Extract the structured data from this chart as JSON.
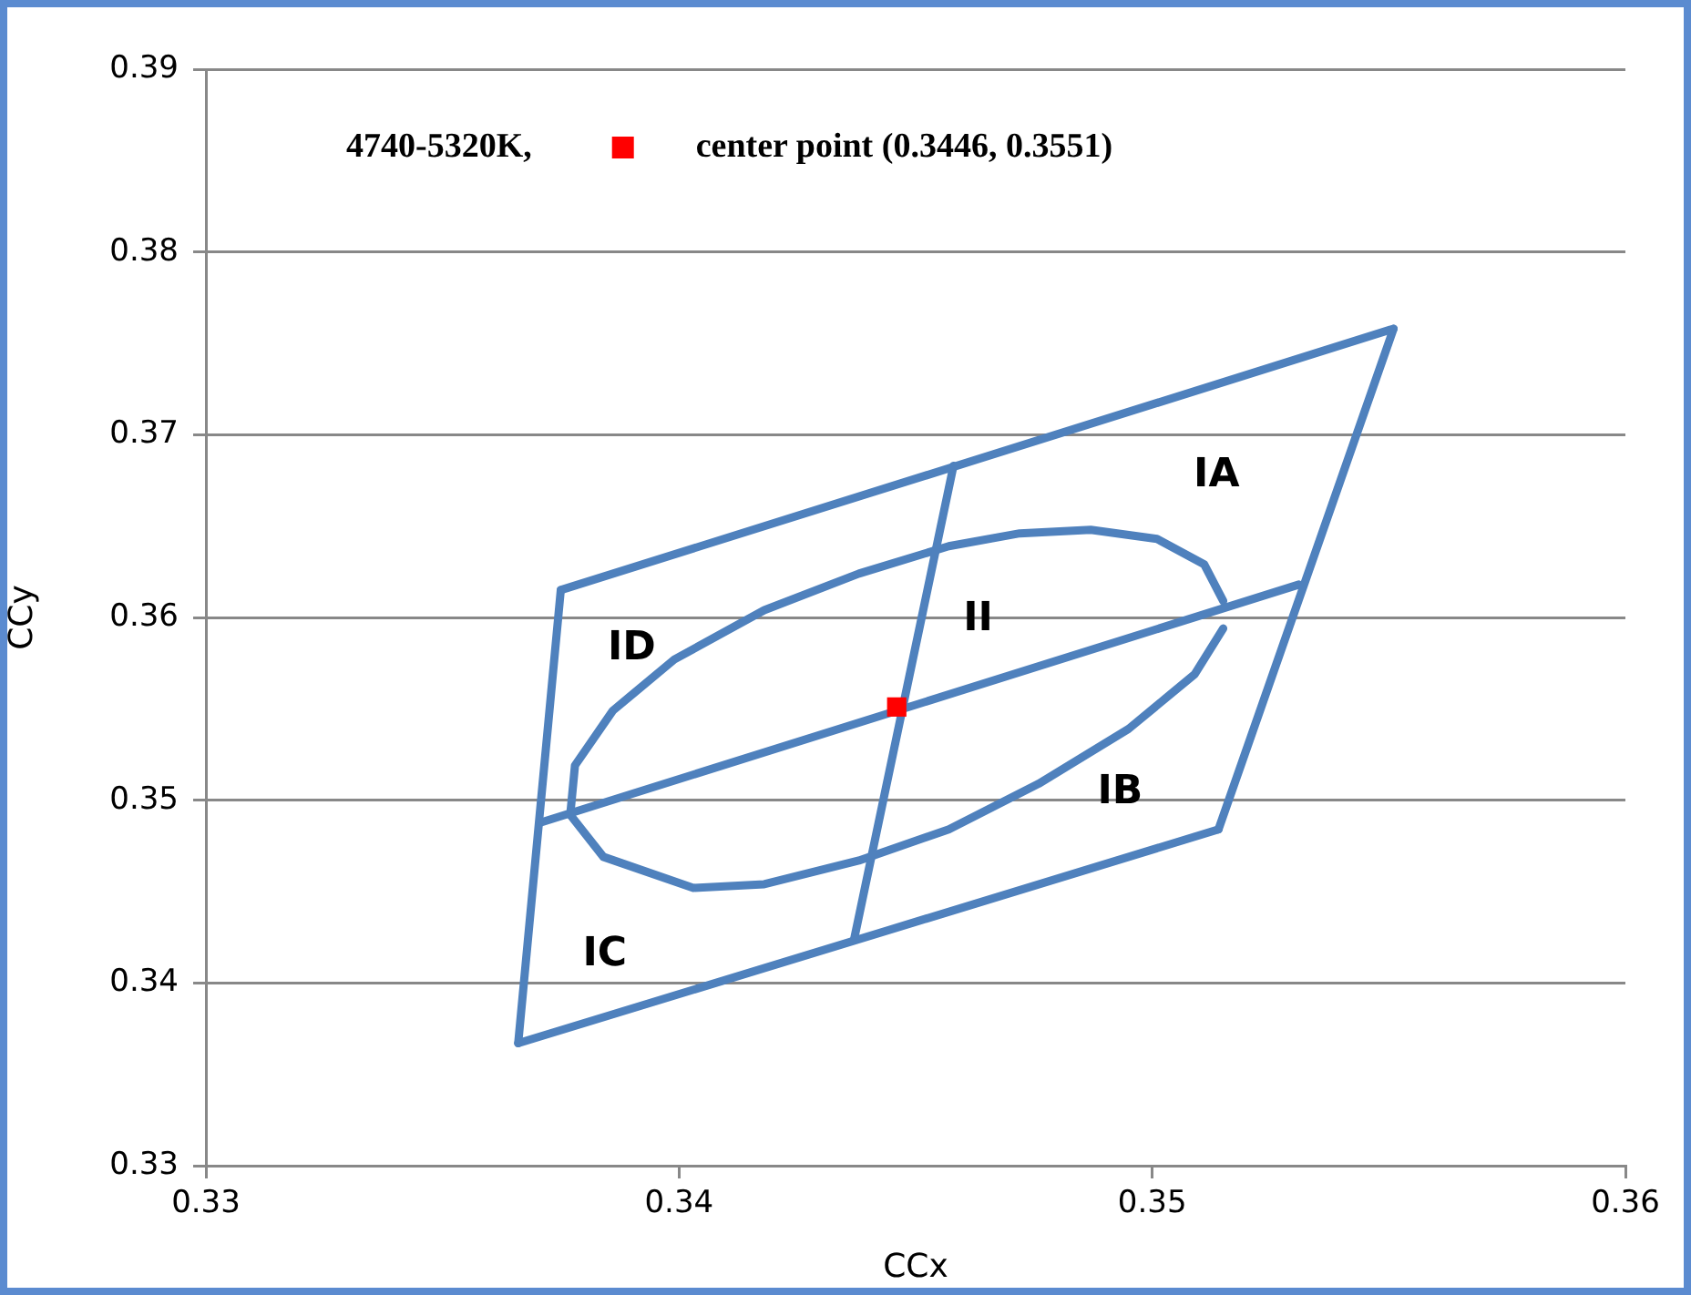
{
  "chart_data": {
    "type": "line",
    "xlabel": "CCx",
    "ylabel": "CCy",
    "legend_title": "4740-5320K,",
    "legend": "top left",
    "grid": "y",
    "xlim": [
      0.33,
      0.36
    ],
    "xticks": [
      0.33,
      0.34,
      0.35,
      0.36
    ],
    "ylim": [
      0.33,
      0.39
    ],
    "yticks": [
      0.33,
      0.34,
      0.35,
      0.36,
      0.37,
      0.38,
      0.39
    ],
    "series": [
      {
        "marker": "none",
        "color": "#4f81bd",
        "x": [
          0.3375,
          0.3551
        ],
        "values": [
          0.3615,
          0.3758
        ]
      },
      {
        "marker": "none",
        "color": "#4f81bd",
        "x": [
          0.3514,
          0.3551
        ],
        "values": [
          0.3484,
          0.3758
        ]
      },
      {
        "marker": "none",
        "color": "#4f81bd",
        "x": [
          0.3366,
          0.3514
        ],
        "values": [
          0.3367,
          0.3484
        ]
      },
      {
        "marker": "none",
        "color": "#4f81bd",
        "x": [
          0.3366,
          0.3375
        ],
        "values": [
          0.3367,
          0.3615
        ]
      },
      {
        "marker": "none",
        "color": "#4f81bd",
        "x": [
          0.3371,
          0.3531
        ],
        "values": [
          0.3488,
          0.3618
        ]
      },
      {
        "marker": "none",
        "color": "#4f81bd",
        "x": [
          0.3437,
          0.3458
        ],
        "values": [
          0.3424,
          0.3683
        ]
      },
      {
        "marker": "none",
        "color": "#4f81bd",
        "x": [
          0.3377,
          0.3378,
          0.3386,
          0.3399,
          0.3418,
          0.3438,
          0.3457,
          0.3472,
          0.3487,
          0.3501,
          0.3511,
          0.3515
        ],
        "values": [
          0.3492,
          0.3519,
          0.3549,
          0.3577,
          0.3604,
          0.3624,
          0.3639,
          0.3646,
          0.3648,
          0.3643,
          0.3629,
          0.3609
        ]
      },
      {
        "marker": "none",
        "color": "#4f81bd",
        "x": [
          0.3377,
          0.3384,
          0.3403,
          0.3418,
          0.3438,
          0.3457,
          0.3476,
          0.3495,
          0.3509,
          0.3515
        ],
        "values": [
          0.3492,
          0.3469,
          0.3452,
          0.3454,
          0.3467,
          0.3484,
          0.3509,
          0.3539,
          0.3569,
          0.3594
        ]
      },
      {
        "type": "scatter",
        "marker": "square",
        "name": "center point (0.3446, 0.3551)",
        "color": "#ff0000",
        "x": [
          0.3446
        ],
        "values": [
          0.3551
        ]
      }
    ],
    "annotations": [
      "IA",
      "II",
      "ID",
      "IB",
      "IC"
    ]
  }
}
